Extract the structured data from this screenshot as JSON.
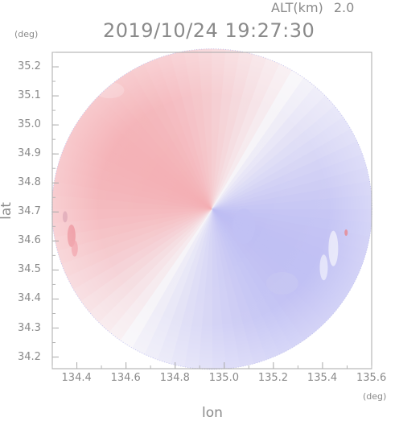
{
  "header": {
    "altitude_label": "ALT(km)",
    "altitude_value": "2.0",
    "timestamp": "2019/10/24 19:27:30"
  },
  "axes": {
    "x": {
      "label": "lon",
      "unit": "(deg)",
      "range": [
        134.3,
        135.6
      ],
      "ticks": [
        "134.4",
        "134.6",
        "134.8",
        "135.0",
        "135.2",
        "135.4",
        "135.6"
      ]
    },
    "y": {
      "label": "lat",
      "unit": "(deg)",
      "range": [
        34.16,
        35.25
      ],
      "ticks": [
        "35.2",
        "35.1",
        "35.0",
        "34.9",
        "34.8",
        "34.7",
        "34.6",
        "34.5",
        "34.4",
        "34.3",
        "34.2"
      ]
    }
  },
  "radar": {
    "center_lon": 134.95,
    "center_lat": 34.71,
    "colors": {
      "positive": "#f4a3a8",
      "negative": "#b0b0f2",
      "neutral": "#f6f4f8",
      "frame": "#aaaaaa"
    }
  }
}
